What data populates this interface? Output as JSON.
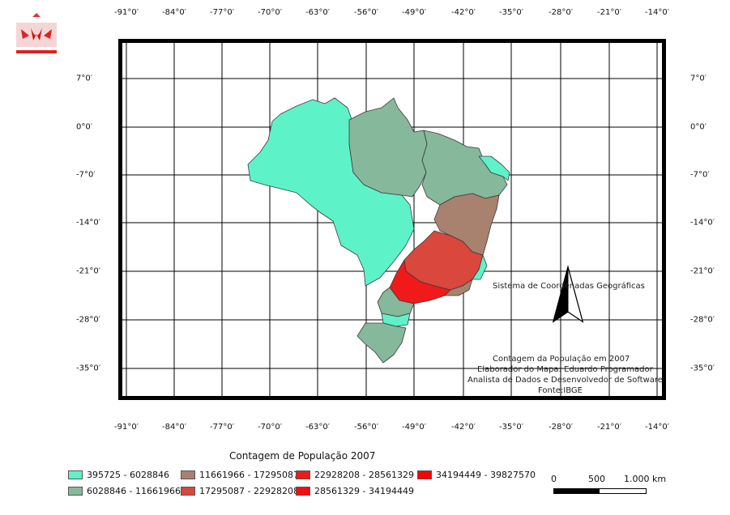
{
  "graticule": {
    "lon_labels": [
      "-91°0′",
      "-84°0′",
      "-77°0′",
      "-70°0′",
      "-63°0′",
      "-56°0′",
      "-49°0′",
      "-42°0′",
      "-35°0′",
      "-28°0′",
      "-21°0′",
      "-14°0′"
    ],
    "lat_labels": [
      "7°0′",
      "0°0′",
      "-7°0′",
      "-14°0′",
      "-21°0′",
      "-28°0′",
      "-35°0′"
    ]
  },
  "map": {
    "crs_label": "Sistema de Coordenadas Geográficas",
    "credits": [
      "Contagem da População em 2007",
      "Elaborador do Mapa: Eduardo Programador",
      "Analista de Dados e Desenvolvedor de Software",
      "Fonte:IBGE"
    ]
  },
  "legend": {
    "title": "Contagem de População 2007",
    "classes": [
      {
        "label": "395725 - 6028846",
        "color": "#5ef2c9"
      },
      {
        "label": "6028846 - 11661966",
        "color": "#86b89b"
      },
      {
        "label": "11661966 - 17295087",
        "color": "#a8826f"
      },
      {
        "label": "17295087 - 22928208",
        "color": "#d9473d"
      },
      {
        "label": "22928208 - 28561329",
        "color": "#f01a1a"
      },
      {
        "label": "28561329 - 34194449",
        "color": "#fb0c0c"
      },
      {
        "label": "34194449 - 39827570",
        "color": "#ff0000"
      }
    ]
  },
  "scalebar": {
    "labels": [
      "0",
      "500",
      "1.000 km"
    ]
  }
}
